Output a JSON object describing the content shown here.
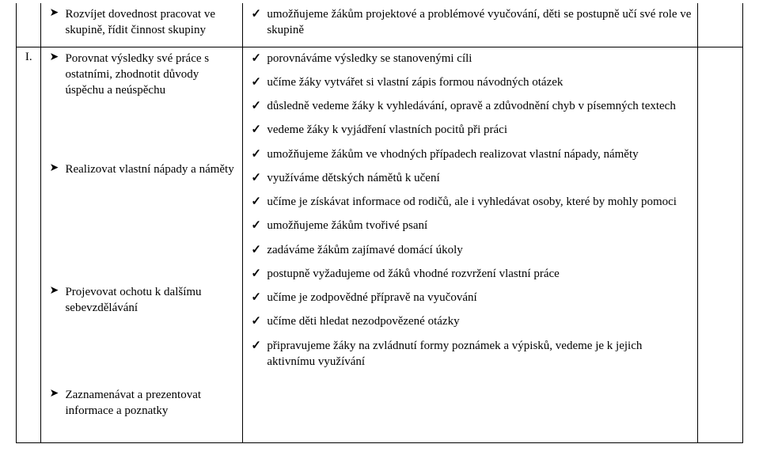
{
  "row1": {
    "left": [
      "Rozvíjet dovednost pracovat ve skupině, řídit činnost skupiny"
    ],
    "right": [
      "umožňujeme žákům projektové a problémové vyučování, děti se postupně učí své role ve skupině"
    ]
  },
  "row2": {
    "label": "I.",
    "leftGroups": [
      {
        "title": "Porovnat výsledky své práce s ostatními, zhodnotit důvody úspěchu a neúspěchu",
        "checks": [
          "porovnáváme výsledky se stanovenými cíli",
          "učíme žáky vytvářet si vlastní zápis formou návodných otázek",
          "důsledně vedeme žáky k vyhledávání, opravě a zdůvodnění chyb v písemných textech",
          "vedeme žáky k vyjádření vlastních pocitů při práci"
        ]
      },
      {
        "title": "Realizovat vlastní nápady a náměty",
        "checks": [
          "umožňujeme žákům ve vhodných případech realizovat vlastní nápady, náměty",
          "využíváme dětských námětů k učení",
          "učíme je získávat informace od rodičů, ale i vyhledávat osoby, které by mohly pomoci",
          "umožňujeme žákům tvořivé psaní"
        ]
      },
      {
        "title": "Projevovat ochotu k dalšímu sebevzdělávání",
        "checks": [
          "zadáváme žákům zajímavé domácí úkoly",
          "postupně vyžadujeme od žáků vhodné rozvržení vlastní práce",
          "učíme je zodpovědné přípravě na vyučování",
          "učíme děti hledat nezodpovězené otázky"
        ]
      },
      {
        "title": "Zaznamenávat a prezentovat informace a poznatky",
        "checks": [
          "připravujeme žáky na zvládnutí formy poznámek a výpisků, vedeme je k jejich aktivnímu využívání"
        ]
      }
    ]
  }
}
